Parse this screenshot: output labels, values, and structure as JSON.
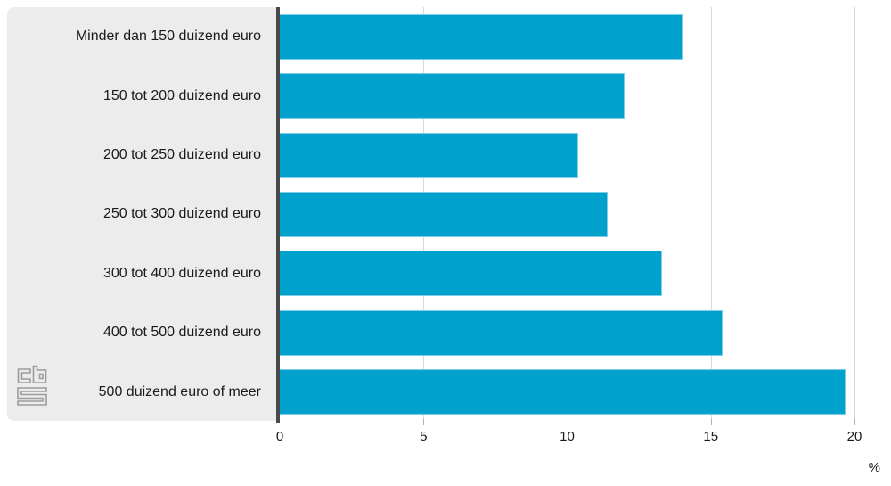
{
  "chart_data": {
    "type": "bar",
    "orientation": "horizontal",
    "title": "",
    "categories": [
      "Minder dan 150 duizend euro",
      "150 tot 200 duizend euro",
      "200 tot 250 duizend euro",
      "250 tot 300 duizend euro",
      "300 tot 400 duizend euro",
      "400 tot 500 duizend euro",
      "500 duizend euro of meer"
    ],
    "values": [
      14.0,
      12.0,
      10.4,
      11.4,
      13.3,
      15.4,
      19.7
    ],
    "xlabel": "%",
    "xlim": [
      0,
      20
    ],
    "xticks": [
      0,
      5,
      10,
      15,
      20
    ],
    "grid": true,
    "legend_position": "none"
  },
  "branding": {
    "logo": "cbs-logo"
  },
  "colors": {
    "bar": "#00a1cd",
    "bar_border": "#7fcde6",
    "panel_bg": "#ececec",
    "axis_line": "#4a4a4a",
    "gridline": "#d9d9d9",
    "tick": "#b0b0b0",
    "text": "#1a1a1a",
    "logo": "#9c9c9c",
    "background": "#ffffff"
  }
}
